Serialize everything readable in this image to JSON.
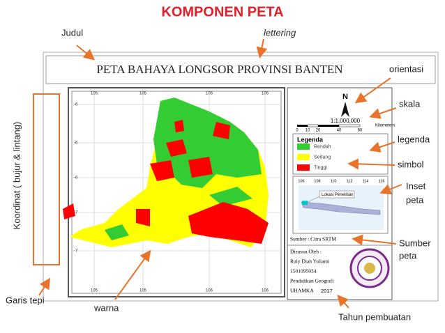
{
  "title": "KOMPONEN PETA",
  "annotations": {
    "judul": "Judul",
    "lettering": "lettering",
    "orientasi": "orientasi",
    "skala": "skala",
    "legenda": "legenda",
    "simbol": "simbol",
    "inset": [
      "Inset",
      "peta"
    ],
    "sumber": [
      "Sumber",
      "peta"
    ],
    "tahun": "Tahun pembuatan",
    "koordinat": "Koordinat ( bujur & lintang)",
    "garis_tepi": "Garis tepi",
    "warna": "warna"
  },
  "map": {
    "title": "PETA BAHAYA LONGSOR PROVINSI BANTEN",
    "top_ticks": [
      "105",
      "105",
      "106",
      "106"
    ],
    "bottom_ticks": [
      "105",
      "105",
      "106",
      "106"
    ],
    "left_ticks": [
      "-6",
      "-6",
      "-6",
      "-7",
      "-7"
    ],
    "north": "N",
    "scale": {
      "ratio": "1:1,000,000",
      "ticks": [
        "0",
        "10",
        "20",
        "40",
        "60"
      ],
      "unit": "Kilometers"
    },
    "legend": {
      "title": "Legenda",
      "items": [
        {
          "label": "Rendah",
          "color": "#33cc33"
        },
        {
          "label": "Sedang",
          "color": "#ffff00"
        },
        {
          "label": "Tinggi",
          "color": "#ff0000"
        }
      ]
    },
    "inset": {
      "ticks": [
        "106",
        "108",
        "110",
        "112",
        "114",
        "116"
      ],
      "label": "Lokasi Penelitian"
    },
    "source": "Sumber : Citra SRTM",
    "credits": [
      "Disusun Oleh :",
      "Ruly Diah Yulianti",
      "1501095034",
      "Pendidikan Geografi"
    ],
    "institution": "UHAMKA",
    "year": "2017"
  }
}
